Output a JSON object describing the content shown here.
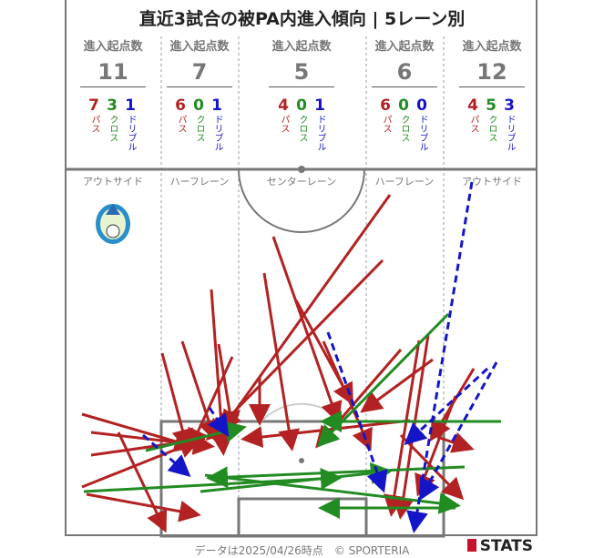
{
  "title": "直近3試合の被PA内進入傾向 | 5レーン別",
  "colors": {
    "pass": "#b22222",
    "cross": "#228b22",
    "dribble": "#1515c8"
  },
  "lanes": [
    {
      "header": "進入起点数",
      "total": "11",
      "pass": "7",
      "cross": "3",
      "dribble": "1",
      "name": "アウトサイド"
    },
    {
      "header": "進入起点数",
      "total": "7",
      "pass": "6",
      "cross": "0",
      "dribble": "1",
      "name": "ハーフレーン"
    },
    {
      "header": "進入起点数",
      "total": "5",
      "pass": "4",
      "cross": "0",
      "dribble": "1",
      "name": "センターレーン"
    },
    {
      "header": "進入起点数",
      "total": "6",
      "pass": "6",
      "cross": "0",
      "dribble": "0",
      "name": "ハーフレーン"
    },
    {
      "header": "進入起点数",
      "total": "12",
      "pass": "4",
      "cross": "5",
      "dribble": "3",
      "name": "アウトサイド"
    }
  ],
  "labels": {
    "pass": "パス",
    "cross": "クロス",
    "dribble": "ドリブル"
  },
  "team_logo": "bellmare-crest",
  "footer": "データは2025/04/26時点　© SPORTERIA",
  "brand": "STATS"
}
